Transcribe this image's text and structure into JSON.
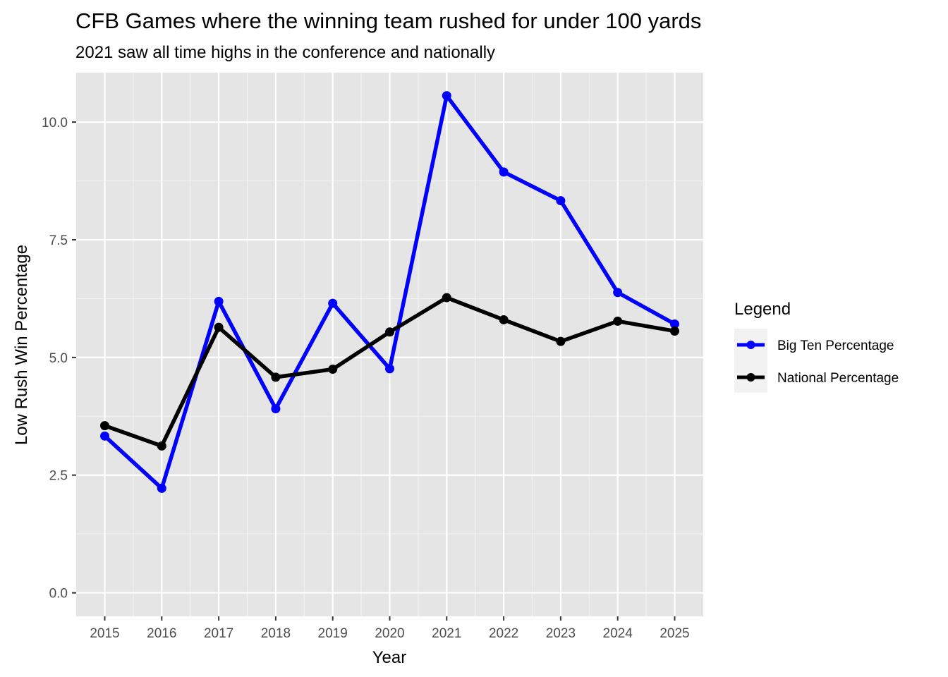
{
  "chart_data": {
    "type": "line",
    "title": "CFB Games where the winning team rushed for under 100 yards",
    "subtitle": "2021 saw all time highs in the conference and nationally",
    "xlabel": "Year",
    "ylabel": "Low Rush Win Percentage",
    "x": [
      "2015",
      "2016",
      "2017",
      "2018",
      "2019",
      "2020",
      "2021",
      "2022",
      "2023",
      "2024",
      "2025"
    ],
    "y_ticks": [
      "0.0",
      "2.5",
      "5.0",
      "7.5",
      "10.0"
    ],
    "y_tick_values": [
      0,
      2.5,
      5.0,
      7.5,
      10.0
    ],
    "ylim": [
      -0.5,
      11.05
    ],
    "grid": true,
    "legend": {
      "title": "Legend",
      "position": "right"
    },
    "series": [
      {
        "name": "Big Ten Percentage",
        "color": "#0000ff",
        "values": [
          3.33,
          2.22,
          6.19,
          3.91,
          6.15,
          4.76,
          10.56,
          8.94,
          8.33,
          6.38,
          5.71
        ]
      },
      {
        "name": "National Percentage",
        "color": "#000000",
        "values": [
          3.55,
          3.12,
          5.64,
          4.58,
          4.75,
          5.54,
          6.27,
          5.8,
          5.34,
          5.77,
          5.56
        ]
      }
    ]
  }
}
